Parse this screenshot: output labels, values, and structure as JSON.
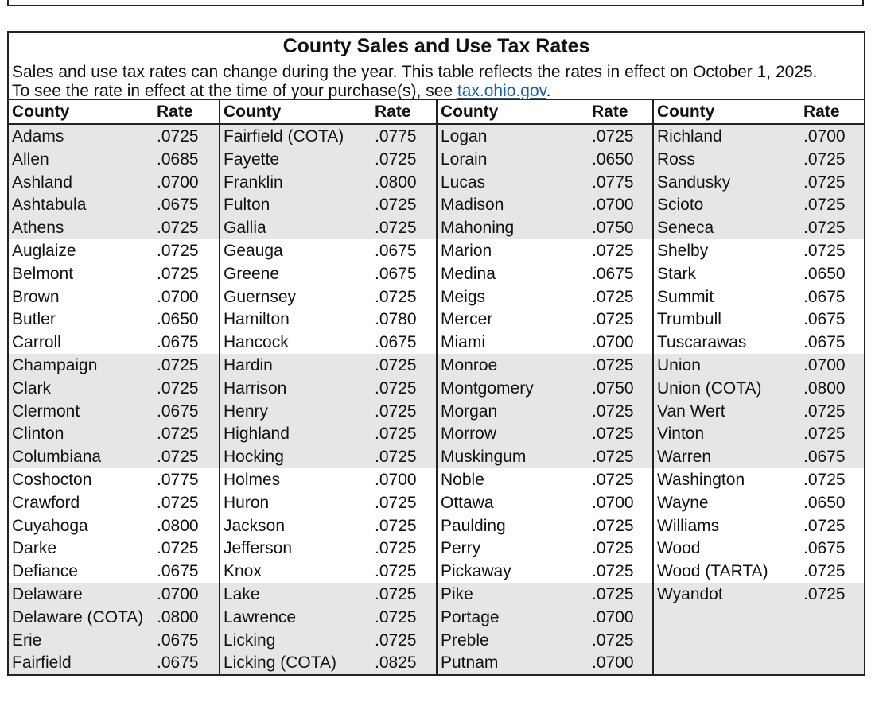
{
  "title": "County Sales and Use Tax Rates",
  "intro": {
    "line1": "Sales and use tax rates can change during the year. This table reflects the rates in effect on October 1, 2025.",
    "line2_pre": "To see the rate in effect at the time of your purchase(s), see ",
    "link_text": "tax.ohio.gov",
    "line2_post": "."
  },
  "headers": {
    "county": "County",
    "rate": "Rate"
  },
  "columns": [
    {
      "rows": [
        [
          "Adams",
          ".0725"
        ],
        [
          "Allen",
          ".0685"
        ],
        [
          "Ashland",
          ".0700"
        ],
        [
          "Ashtabula",
          ".0675"
        ],
        [
          "Athens",
          ".0725"
        ],
        [
          "Auglaize",
          ".0725"
        ],
        [
          "Belmont",
          ".0725"
        ],
        [
          "Brown",
          ".0700"
        ],
        [
          "Butler",
          ".0650"
        ],
        [
          "Carroll",
          ".0675"
        ],
        [
          "Champaign",
          ".0725"
        ],
        [
          "Clark",
          ".0725"
        ],
        [
          "Clermont",
          ".0675"
        ],
        [
          "Clinton",
          ".0725"
        ],
        [
          "Columbiana",
          ".0725"
        ],
        [
          "Coshocton",
          ".0775"
        ],
        [
          "Crawford",
          ".0725"
        ],
        [
          "Cuyahoga",
          ".0800"
        ],
        [
          "Darke",
          ".0725"
        ],
        [
          "Defiance",
          ".0675"
        ],
        [
          "Delaware",
          ".0700"
        ],
        [
          "Delaware (COTA)",
          ".0800"
        ],
        [
          "Erie",
          ".0675"
        ],
        [
          "Fairfield",
          ".0675"
        ]
      ]
    },
    {
      "rows": [
        [
          "Fairfield (COTA)",
          ".0775"
        ],
        [
          "Fayette",
          ".0725"
        ],
        [
          "Franklin",
          ".0800"
        ],
        [
          "Fulton",
          ".0725"
        ],
        [
          "Gallia",
          ".0725"
        ],
        [
          "Geauga",
          ".0675"
        ],
        [
          "Greene",
          ".0675"
        ],
        [
          "Guernsey",
          ".0725"
        ],
        [
          "Hamilton",
          ".0780"
        ],
        [
          "Hancock",
          ".0675"
        ],
        [
          "Hardin",
          ".0725"
        ],
        [
          "Harrison",
          ".0725"
        ],
        [
          "Henry",
          ".0725"
        ],
        [
          "Highland",
          ".0725"
        ],
        [
          "Hocking",
          ".0725"
        ],
        [
          "Holmes",
          ".0700"
        ],
        [
          "Huron",
          ".0725"
        ],
        [
          "Jackson",
          ".0725"
        ],
        [
          "Jefferson",
          ".0725"
        ],
        [
          "Knox",
          ".0725"
        ],
        [
          "Lake",
          ".0725"
        ],
        [
          "Lawrence",
          ".0725"
        ],
        [
          "Licking",
          ".0725"
        ],
        [
          "Licking (COTA)",
          ".0825"
        ]
      ]
    },
    {
      "rows": [
        [
          "Logan",
          ".0725"
        ],
        [
          "Lorain",
          ".0650"
        ],
        [
          "Lucas",
          ".0775"
        ],
        [
          "Madison",
          ".0700"
        ],
        [
          "Mahoning",
          ".0750"
        ],
        [
          "Marion",
          ".0725"
        ],
        [
          "Medina",
          ".0675"
        ],
        [
          "Meigs",
          ".0725"
        ],
        [
          "Mercer",
          ".0725"
        ],
        [
          "Miami",
          ".0700"
        ],
        [
          "Monroe",
          ".0725"
        ],
        [
          "Montgomery",
          ".0750"
        ],
        [
          "Morgan",
          ".0725"
        ],
        [
          "Morrow",
          ".0725"
        ],
        [
          "Muskingum",
          ".0725"
        ],
        [
          "Noble",
          ".0725"
        ],
        [
          "Ottawa",
          ".0700"
        ],
        [
          "Paulding",
          ".0725"
        ],
        [
          "Perry",
          ".0725"
        ],
        [
          "Pickaway",
          ".0725"
        ],
        [
          "Pike",
          ".0725"
        ],
        [
          "Portage",
          ".0700"
        ],
        [
          "Preble",
          ".0725"
        ],
        [
          "Putnam",
          ".0700"
        ]
      ]
    },
    {
      "rows": [
        [
          "Richland",
          ".0700"
        ],
        [
          "Ross",
          ".0725"
        ],
        [
          "Sandusky",
          ".0725"
        ],
        [
          "Scioto",
          ".0725"
        ],
        [
          "Seneca",
          ".0725"
        ],
        [
          "Shelby",
          ".0725"
        ],
        [
          "Stark",
          ".0650"
        ],
        [
          "Summit",
          ".0675"
        ],
        [
          "Trumbull",
          ".0675"
        ],
        [
          "Tuscarawas",
          ".0675"
        ],
        [
          "Union",
          ".0700"
        ],
        [
          "Union (COTA)",
          ".0800"
        ],
        [
          "Van Wert",
          ".0725"
        ],
        [
          "Vinton",
          ".0725"
        ],
        [
          "Warren",
          ".0675"
        ],
        [
          "Washington",
          ".0725"
        ],
        [
          "Wayne",
          ".0650"
        ],
        [
          "Williams",
          ".0725"
        ],
        [
          "Wood",
          ".0675"
        ],
        [
          "Wood (TARTA)",
          ".0725"
        ],
        [
          "Wyandot",
          ".0725"
        ]
      ]
    }
  ]
}
